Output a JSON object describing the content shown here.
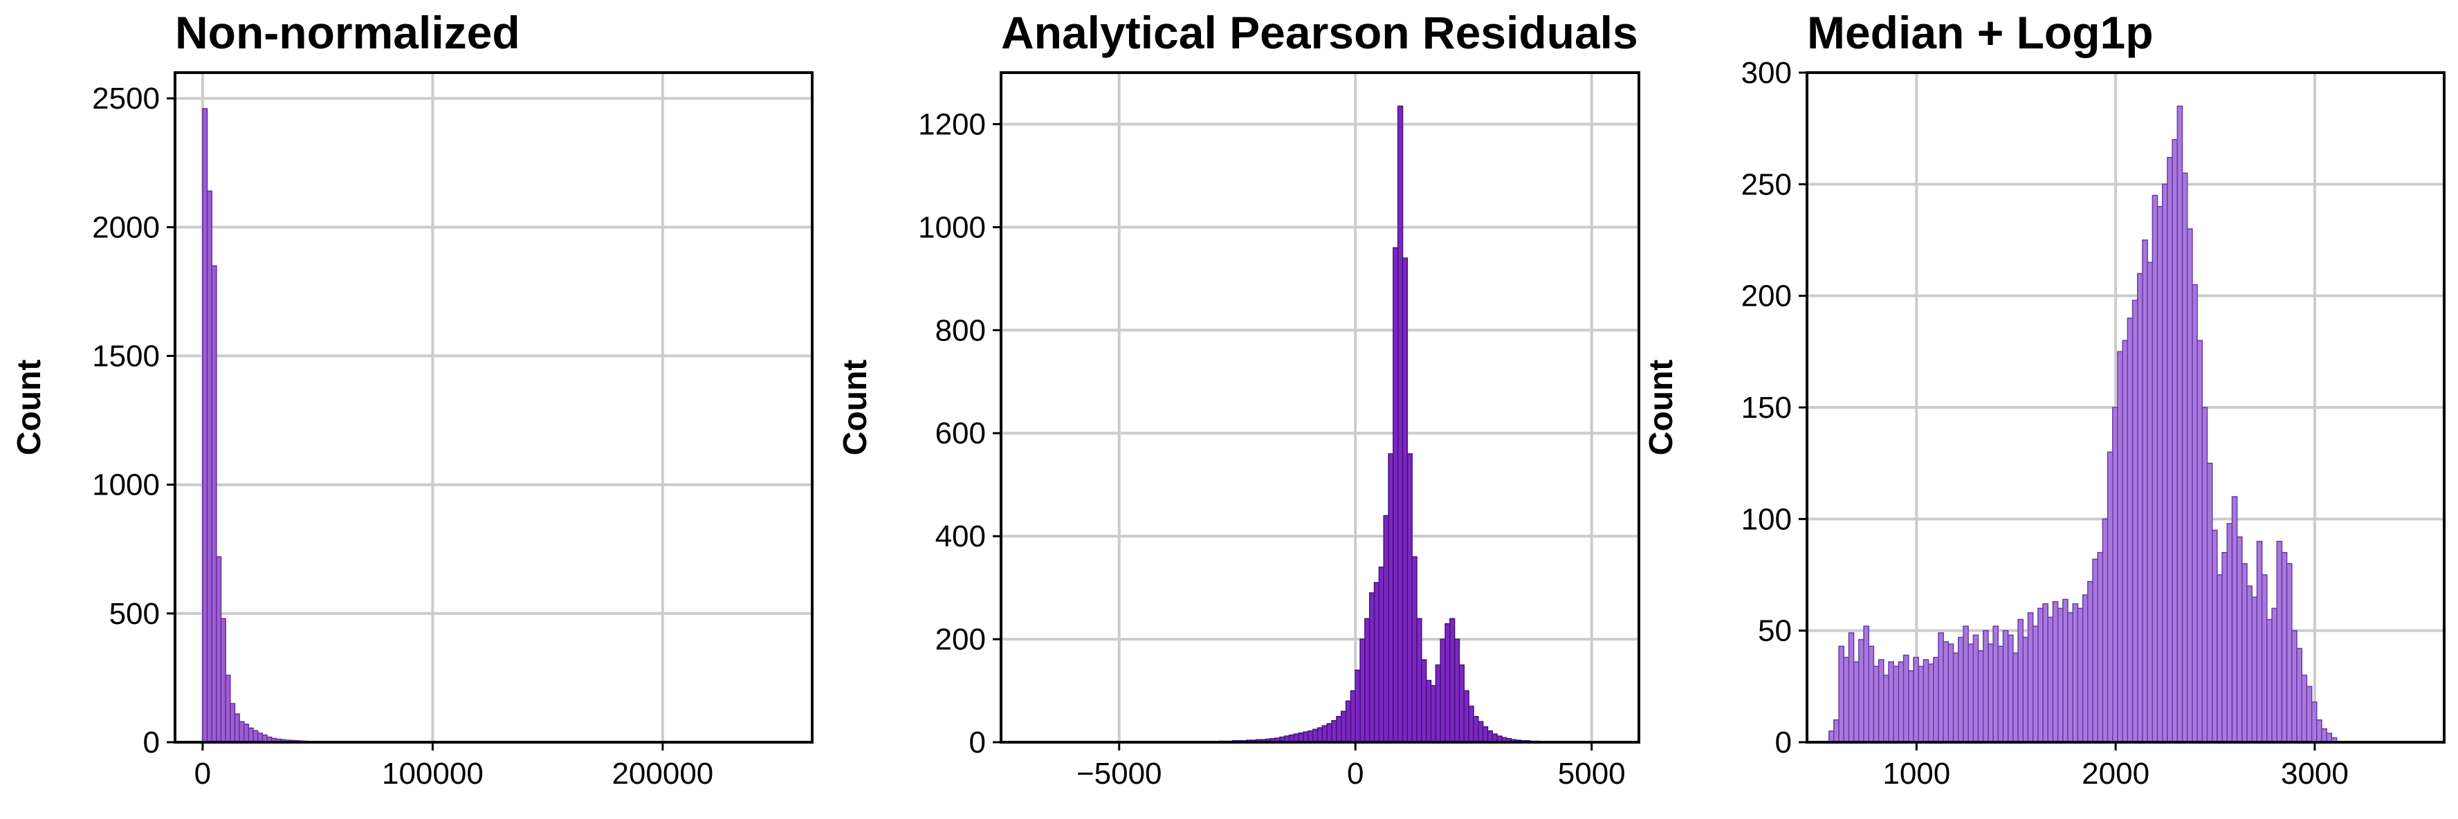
{
  "chart_data": [
    {
      "type": "bar",
      "title": "Non-normalized",
      "xlabel": "",
      "ylabel": "Count",
      "xlim": [
        -12000,
        265000
      ],
      "ylim": [
        0,
        2600
      ],
      "xticks": [
        0,
        100000,
        200000
      ],
      "yticks": [
        0,
        500,
        1000,
        1500,
        2000,
        2500
      ],
      "color": "#9a5fd0",
      "edgecolor": "#6a2aa0",
      "bin_start": 0,
      "bin_width": 2000,
      "values": [
        2460,
        2140,
        1850,
        720,
        480,
        260,
        150,
        110,
        80,
        70,
        55,
        45,
        35,
        28,
        20,
        15,
        12,
        10,
        8,
        7,
        6,
        5,
        4,
        3,
        3,
        2,
        2,
        2,
        1,
        1
      ]
    },
    {
      "type": "bar",
      "title": "Analytical Pearson Residuals",
      "xlabel": "",
      "ylabel": "Count",
      "xlim": [
        -7500,
        6000
      ],
      "ylim": [
        0,
        1300
      ],
      "xticks": [
        -5000,
        0,
        5000
      ],
      "yticks": [
        0,
        200,
        400,
        600,
        800,
        1000,
        1200
      ],
      "color": "#7a28c0",
      "edgecolor": "#4a1080",
      "bin_start": -5000,
      "bin_width": 100,
      "values": [
        1,
        1,
        1,
        1,
        1,
        1,
        1,
        1,
        1,
        1,
        1,
        1,
        1,
        1,
        1,
        1,
        1,
        1,
        1,
        1,
        1,
        2,
        2,
        2,
        3,
        3,
        3,
        4,
        4,
        5,
        5,
        6,
        7,
        8,
        10,
        12,
        14,
        16,
        18,
        20,
        22,
        25,
        28,
        32,
        36,
        42,
        50,
        60,
        80,
        100,
        140,
        200,
        240,
        290,
        310,
        340,
        440,
        560,
        960,
        1235,
        940,
        560,
        360,
        240,
        160,
        120,
        110,
        150,
        200,
        230,
        240,
        200,
        150,
        100,
        70,
        50,
        40,
        30,
        22,
        16,
        12,
        9,
        7,
        5,
        4,
        3,
        3,
        2,
        2,
        1
      ]
    },
    {
      "type": "bar",
      "title": "Median + Log1p",
      "xlabel": "",
      "ylabel": "Count",
      "xlim": [
        450,
        3650
      ],
      "ylim": [
        0,
        300
      ],
      "xticks": [
        1000,
        2000,
        3000
      ],
      "yticks": [
        0,
        50,
        100,
        150,
        200,
        250,
        300
      ],
      "color": "#a878dc",
      "edgecolor": "#6a3aa8",
      "bin_start": 560,
      "bin_width": 25,
      "values": [
        5,
        10,
        43,
        38,
        49,
        36,
        46,
        52,
        43,
        34,
        37,
        30,
        36,
        34,
        36,
        39,
        32,
        38,
        34,
        37,
        35,
        38,
        49,
        45,
        44,
        40,
        47,
        52,
        44,
        48,
        41,
        50,
        44,
        52,
        43,
        50,
        48,
        40,
        55,
        47,
        58,
        52,
        60,
        62,
        56,
        63,
        60,
        64,
        58,
        62,
        60,
        66,
        72,
        82,
        85,
        100,
        130,
        150,
        175,
        180,
        190,
        198,
        210,
        225,
        215,
        245,
        240,
        250,
        262,
        270,
        285,
        255,
        230,
        205,
        180,
        150,
        125,
        95,
        75,
        85,
        98,
        110,
        92,
        80,
        70,
        65,
        90,
        75,
        55,
        60,
        90,
        85,
        80,
        50,
        42,
        30,
        25,
        18,
        10,
        6,
        4,
        2
      ]
    }
  ]
}
